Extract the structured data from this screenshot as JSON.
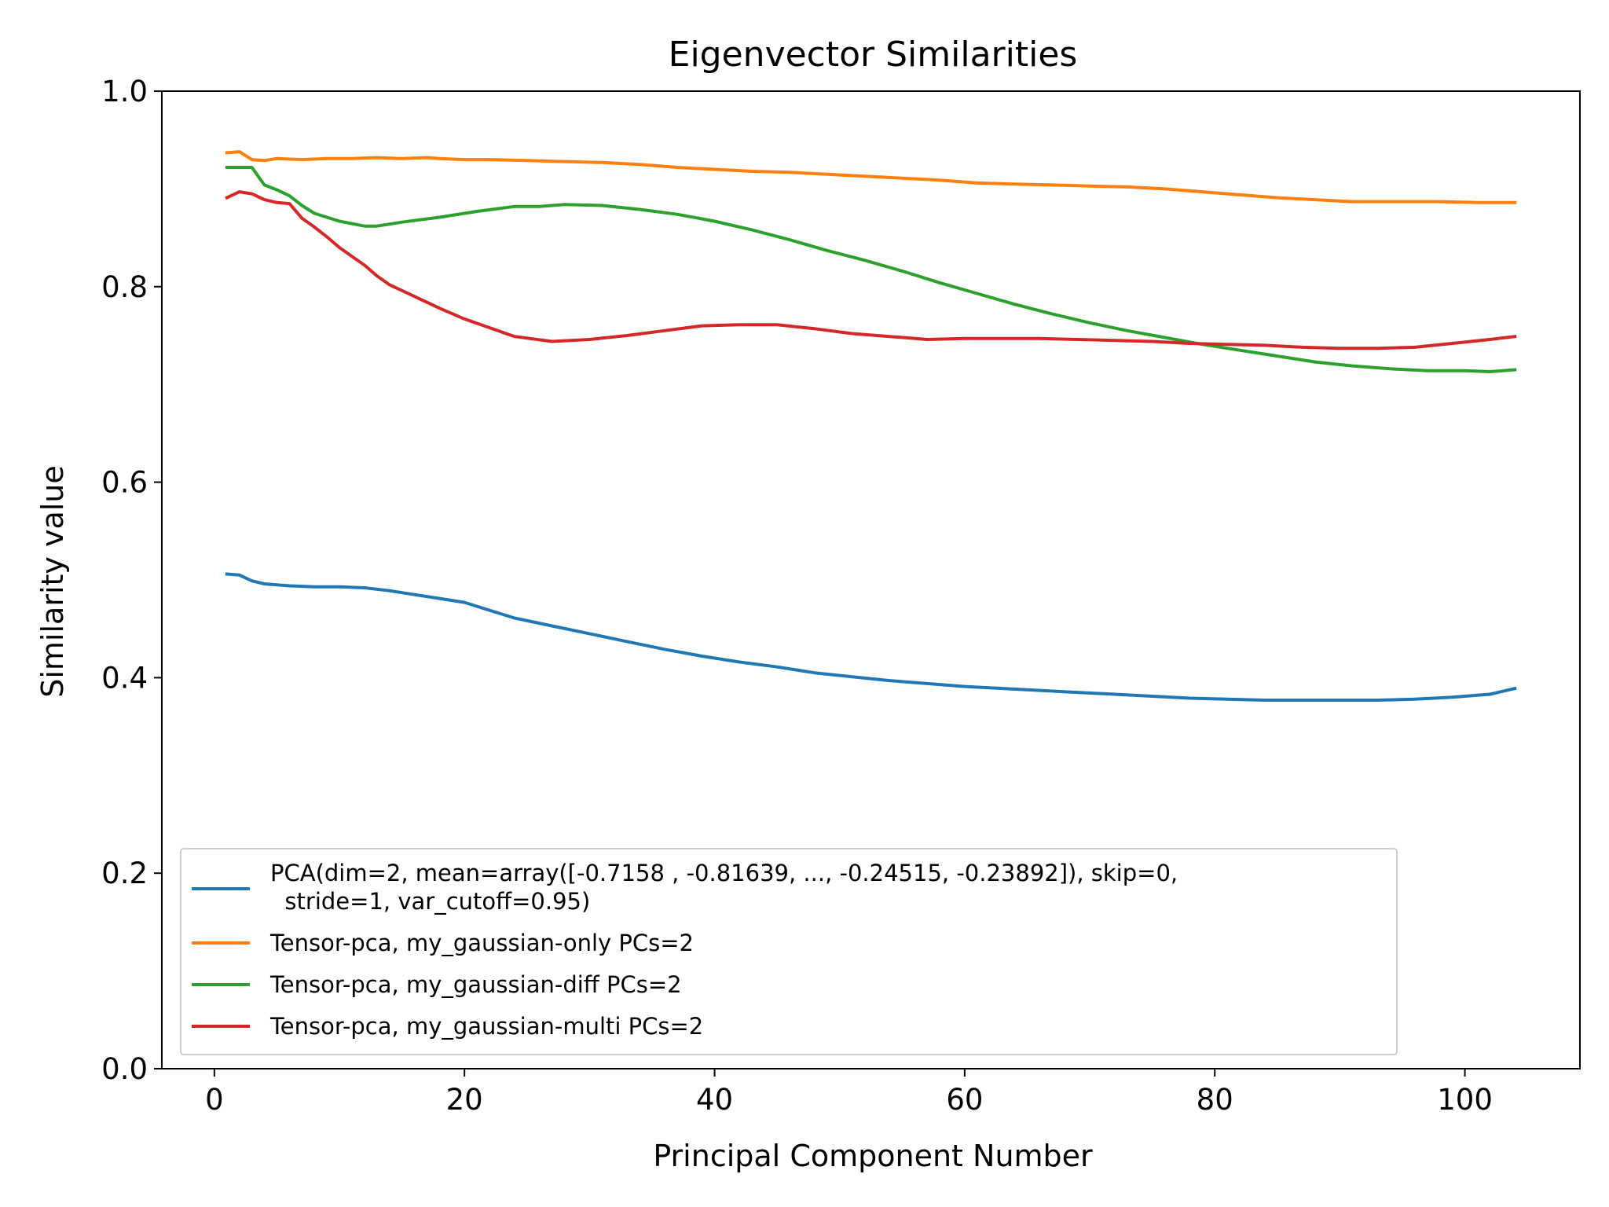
{
  "chart_data": {
    "type": "line",
    "title": "Eigenvector Similarities",
    "xlabel": "Principal Component Number",
    "ylabel": "Similarity value",
    "xlim": [
      -4.2,
      109.2
    ],
    "ylim": [
      0.0,
      1.0
    ],
    "xticks": [
      0,
      20,
      40,
      60,
      80,
      100
    ],
    "xtick_labels": [
      "0",
      "20",
      "40",
      "60",
      "80",
      "100"
    ],
    "yticks": [
      0.0,
      0.2,
      0.4,
      0.6,
      0.8,
      1.0
    ],
    "ytick_labels": [
      "0.0",
      "0.2",
      "0.4",
      "0.6",
      "0.8",
      "1.0"
    ],
    "grid": false,
    "legend_position": "lower-left",
    "series": [
      {
        "name_lines": [
          "PCA(dim=2, mean=array([-0.7158 , -0.81639, ..., -0.24515, -0.23892]), skip=0,",
          "  stride=1, var_cutoff=0.95)"
        ],
        "color": "#1f77b4",
        "points": [
          [
            1,
            0.506
          ],
          [
            2,
            0.505
          ],
          [
            3,
            0.499
          ],
          [
            4,
            0.496
          ],
          [
            6,
            0.494
          ],
          [
            8,
            0.493
          ],
          [
            10,
            0.493
          ],
          [
            12,
            0.492
          ],
          [
            14,
            0.489
          ],
          [
            16,
            0.485
          ],
          [
            18,
            0.481
          ],
          [
            20,
            0.477
          ],
          [
            22,
            0.469
          ],
          [
            24,
            0.461
          ],
          [
            27,
            0.453
          ],
          [
            30,
            0.445
          ],
          [
            33,
            0.437
          ],
          [
            36,
            0.429
          ],
          [
            39,
            0.422
          ],
          [
            42,
            0.416
          ],
          [
            45,
            0.411
          ],
          [
            48,
            0.405
          ],
          [
            51,
            0.401
          ],
          [
            54,
            0.397
          ],
          [
            57,
            0.394
          ],
          [
            60,
            0.391
          ],
          [
            63,
            0.389
          ],
          [
            66,
            0.387
          ],
          [
            69,
            0.385
          ],
          [
            72,
            0.383
          ],
          [
            75,
            0.381
          ],
          [
            78,
            0.379
          ],
          [
            81,
            0.378
          ],
          [
            84,
            0.377
          ],
          [
            87,
            0.377
          ],
          [
            90,
            0.377
          ],
          [
            93,
            0.377
          ],
          [
            96,
            0.378
          ],
          [
            99,
            0.38
          ],
          [
            102,
            0.383
          ],
          [
            104,
            0.389
          ]
        ]
      },
      {
        "name": "Tensor-pca, my_gaussian-only PCs=2",
        "color": "#ff7f0e",
        "points": [
          [
            1,
            0.937
          ],
          [
            2,
            0.938
          ],
          [
            3,
            0.93
          ],
          [
            4,
            0.929
          ],
          [
            5,
            0.931
          ],
          [
            7,
            0.93
          ],
          [
            9,
            0.931
          ],
          [
            11,
            0.931
          ],
          [
            13,
            0.932
          ],
          [
            15,
            0.931
          ],
          [
            17,
            0.932
          ],
          [
            18,
            0.931
          ],
          [
            20,
            0.93
          ],
          [
            22,
            0.93
          ],
          [
            25,
            0.929
          ],
          [
            28,
            0.928
          ],
          [
            31,
            0.927
          ],
          [
            34,
            0.925
          ],
          [
            37,
            0.922
          ],
          [
            40,
            0.92
          ],
          [
            43,
            0.918
          ],
          [
            46,
            0.917
          ],
          [
            49,
            0.915
          ],
          [
            52,
            0.913
          ],
          [
            55,
            0.911
          ],
          [
            58,
            0.909
          ],
          [
            61,
            0.906
          ],
          [
            64,
            0.905
          ],
          [
            67,
            0.904
          ],
          [
            70,
            0.903
          ],
          [
            73,
            0.902
          ],
          [
            76,
            0.9
          ],
          [
            79,
            0.897
          ],
          [
            82,
            0.894
          ],
          [
            85,
            0.891
          ],
          [
            88,
            0.889
          ],
          [
            91,
            0.887
          ],
          [
            95,
            0.887
          ],
          [
            98,
            0.887
          ],
          [
            101,
            0.886
          ],
          [
            104,
            0.886
          ]
        ]
      },
      {
        "name": "Tensor-pca, my_gaussian-diff PCs=2",
        "color": "#2ca02c",
        "points": [
          [
            1,
            0.922
          ],
          [
            2,
            0.922
          ],
          [
            3,
            0.922
          ],
          [
            4,
            0.904
          ],
          [
            5,
            0.899
          ],
          [
            6,
            0.893
          ],
          [
            7,
            0.883
          ],
          [
            8,
            0.875
          ],
          [
            9,
            0.871
          ],
          [
            10,
            0.867
          ],
          [
            12,
            0.862
          ],
          [
            13,
            0.862
          ],
          [
            15,
            0.866
          ],
          [
            18,
            0.871
          ],
          [
            21,
            0.877
          ],
          [
            24,
            0.882
          ],
          [
            26,
            0.882
          ],
          [
            28,
            0.884
          ],
          [
            31,
            0.883
          ],
          [
            34,
            0.879
          ],
          [
            37,
            0.874
          ],
          [
            40,
            0.867
          ],
          [
            43,
            0.858
          ],
          [
            46,
            0.848
          ],
          [
            49,
            0.837
          ],
          [
            52,
            0.827
          ],
          [
            55,
            0.816
          ],
          [
            58,
            0.804
          ],
          [
            61,
            0.793
          ],
          [
            64,
            0.782
          ],
          [
            67,
            0.772
          ],
          [
            70,
            0.763
          ],
          [
            73,
            0.755
          ],
          [
            76,
            0.748
          ],
          [
            79,
            0.741
          ],
          [
            82,
            0.735
          ],
          [
            85,
            0.729
          ],
          [
            88,
            0.723
          ],
          [
            91,
            0.719
          ],
          [
            94,
            0.716
          ],
          [
            97,
            0.714
          ],
          [
            100,
            0.714
          ],
          [
            102,
            0.713
          ],
          [
            104,
            0.715
          ]
        ]
      },
      {
        "name": "Tensor-pca, my_gaussian-multi PCs=2",
        "color": "#d62728",
        "points": [
          [
            1,
            0.891
          ],
          [
            2,
            0.897
          ],
          [
            3,
            0.895
          ],
          [
            4,
            0.889
          ],
          [
            5,
            0.886
          ],
          [
            6,
            0.885
          ],
          [
            7,
            0.87
          ],
          [
            8,
            0.861
          ],
          [
            9,
            0.851
          ],
          [
            10,
            0.84
          ],
          [
            11,
            0.831
          ],
          [
            12,
            0.822
          ],
          [
            13,
            0.811
          ],
          [
            14,
            0.802
          ],
          [
            16,
            0.79
          ],
          [
            18,
            0.778
          ],
          [
            20,
            0.767
          ],
          [
            22,
            0.758
          ],
          [
            24,
            0.749
          ],
          [
            27,
            0.744
          ],
          [
            30,
            0.746
          ],
          [
            33,
            0.75
          ],
          [
            36,
            0.755
          ],
          [
            39,
            0.76
          ],
          [
            42,
            0.761
          ],
          [
            45,
            0.761
          ],
          [
            48,
            0.757
          ],
          [
            51,
            0.752
          ],
          [
            54,
            0.749
          ],
          [
            57,
            0.746
          ],
          [
            60,
            0.747
          ],
          [
            63,
            0.747
          ],
          [
            66,
            0.747
          ],
          [
            69,
            0.746
          ],
          [
            72,
            0.745
          ],
          [
            75,
            0.744
          ],
          [
            78,
            0.742
          ],
          [
            81,
            0.741
          ],
          [
            84,
            0.74
          ],
          [
            87,
            0.738
          ],
          [
            90,
            0.737
          ],
          [
            93,
            0.737
          ],
          [
            96,
            0.738
          ],
          [
            99,
            0.742
          ],
          [
            102,
            0.746
          ],
          [
            104,
            0.749
          ]
        ]
      }
    ]
  }
}
